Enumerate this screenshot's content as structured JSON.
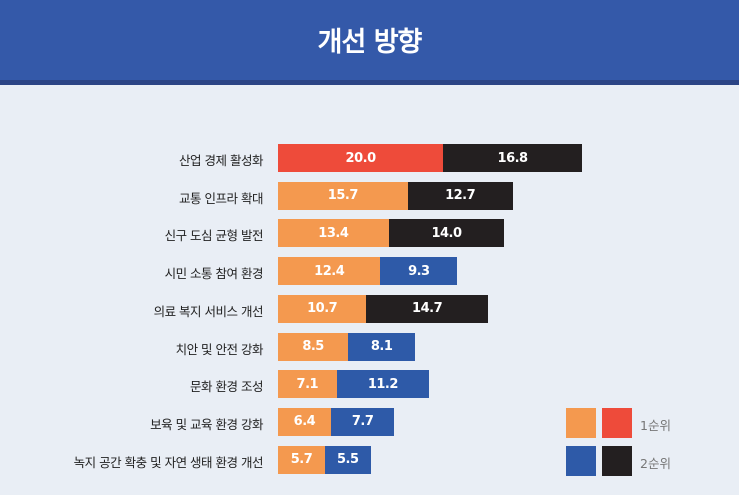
{
  "chart_data": {
    "type": "bar",
    "orientation": "horizontal",
    "stacked": true,
    "title": "개선 방향",
    "categories": [
      "산업 경제 활성화",
      "교통 인프라 확대",
      "신구 도심 균형 발전",
      "시민 소통 참여 환경",
      "의료 복지 서비스 개선",
      "치안 및 안전 강화",
      "문화 환경 조성",
      "보육 및 교육 환경 강화",
      "녹지 공간 확충 및 자연 생태 환경 개선"
    ],
    "series": [
      {
        "name": "1순위",
        "values": [
          20.0,
          15.7,
          13.4,
          12.4,
          10.7,
          8.5,
          7.1,
          6.4,
          5.7
        ],
        "value_labels": [
          "20.0",
          "15.7",
          "13.4",
          "12.4",
          "10.7",
          "8.5",
          "7.1",
          "6.4",
          "5.7"
        ],
        "colors": [
          "#ee4b3a",
          "#f4994f",
          "#f4994f",
          "#f4994f",
          "#f4994f",
          "#f4994f",
          "#f4994f",
          "#f4994f",
          "#f4994f"
        ]
      },
      {
        "name": "2순위",
        "values": [
          16.8,
          12.7,
          14.0,
          9.3,
          14.7,
          8.1,
          11.2,
          7.7,
          5.5
        ],
        "value_labels": [
          "16.8",
          "12.7",
          "14.0",
          "9.3",
          "14.7",
          "8.1",
          "11.2",
          "7.7",
          "5.5"
        ],
        "colors": [
          "#231f20",
          "#231f20",
          "#231f20",
          "#2e5aa8",
          "#231f20",
          "#2e5aa8",
          "#2e5aa8",
          "#2e5aa8",
          "#2e5aa8"
        ]
      }
    ],
    "legend": {
      "placement": "bottom-right",
      "items": [
        {
          "label": "1순위",
          "colors": [
            "#f4994f",
            "#ee4b3a"
          ]
        },
        {
          "label": "2순위",
          "colors": [
            "#2e5aa8",
            "#231f20"
          ]
        }
      ]
    },
    "grid": false
  }
}
